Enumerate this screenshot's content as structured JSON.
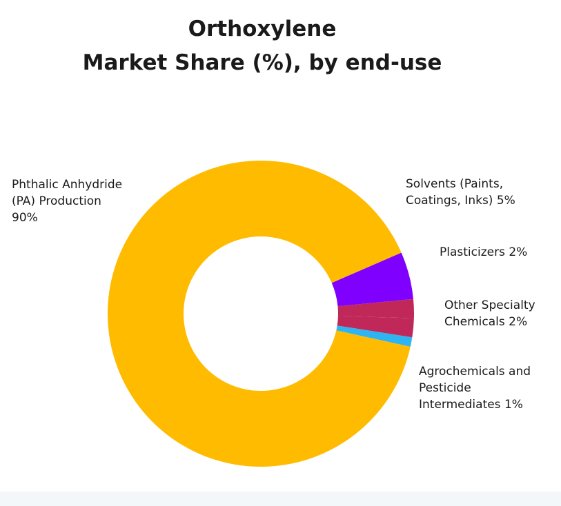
{
  "chart_data": {
    "type": "pie",
    "donut": true,
    "title": [
      "Orthoxylene",
      "Market Share (%), by end-use"
    ],
    "unit": "%",
    "slices": [
      {
        "label": "Solvents (Paints, Coatings, Inks) 5%",
        "name": "Solvents (Paints, Coatings, Inks)",
        "value": 5,
        "color": "#8000ff"
      },
      {
        "label": "Plasticizers 2%",
        "name": "Plasticizers",
        "value": 2,
        "color": "#c0285a"
      },
      {
        "label": "Other Specialty Chemicals 2%",
        "name": "Other Specialty Chemicals",
        "value": 2,
        "color": "#c0285a"
      },
      {
        "label": "Agrochemicals and Pesticide Intermediates 1%",
        "name": "Agrochemicals and Pesticide Intermediates",
        "value": 1,
        "color": "#2eb4f0"
      },
      {
        "label": "Phthalic Anhydride (PA) Production 90%",
        "name": "Phthalic Anhydride (PA) Production",
        "value": 90,
        "color": "#ffbb00"
      }
    ]
  }
}
